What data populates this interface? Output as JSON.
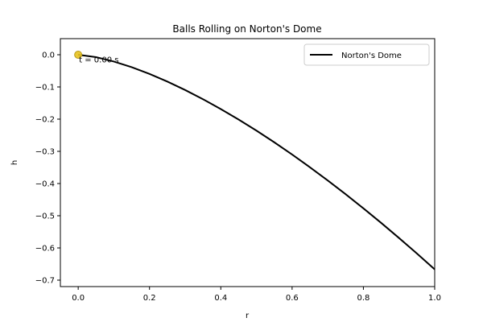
{
  "chart_data": {
    "type": "line",
    "title": "Balls Rolling on Norton's Dome",
    "xlabel": "r",
    "ylabel": "h",
    "xlim": [
      -0.05,
      1.0
    ],
    "ylim": [
      -0.72,
      0.05
    ],
    "xticks": [
      0.0,
      0.2,
      0.4,
      0.6,
      0.8,
      1.0
    ],
    "xtick_labels": [
      "0.0",
      "0.2",
      "0.4",
      "0.6",
      "0.8",
      "1.0"
    ],
    "yticks": [
      0.0,
      -0.1,
      -0.2,
      -0.3,
      -0.4,
      -0.5,
      -0.6,
      -0.7
    ],
    "ytick_labels": [
      "0.0",
      "−0.1",
      "−0.2",
      "−0.3",
      "−0.4",
      "−0.5",
      "−0.6",
      "−0.7"
    ],
    "grid": false,
    "legend": {
      "placement": "top-right",
      "entries": [
        "Norton's Dome"
      ]
    },
    "series": [
      {
        "name": "Norton's Dome",
        "color": "#000000",
        "x": [
          0.0,
          0.05,
          0.1,
          0.15,
          0.2,
          0.25,
          0.3,
          0.35,
          0.4,
          0.45,
          0.5,
          0.55,
          0.6,
          0.65,
          0.7,
          0.75,
          0.8,
          0.85,
          0.9,
          0.95,
          1.0
        ],
        "y": [
          0.0,
          -0.0075,
          -0.0211,
          -0.0387,
          -0.0596,
          -0.0833,
          -0.1095,
          -0.138,
          -0.1687,
          -0.2012,
          -0.2357,
          -0.2719,
          -0.3098,
          -0.3494,
          -0.3905,
          -0.433,
          -0.4771,
          -0.5224,
          -0.5692,
          -0.6173,
          -0.6667
        ]
      }
    ],
    "markers": [
      {
        "x": 0.0,
        "y": 0.0,
        "color": "#e8c21f",
        "edge_color": "#b59a1a"
      }
    ],
    "annotation": {
      "text": "t = 0.00 s",
      "x": 0.0,
      "y": 0.0
    }
  }
}
